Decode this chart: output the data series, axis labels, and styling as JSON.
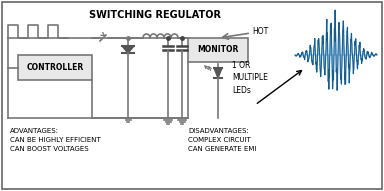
{
  "title": "SWITCHING REGULATOR",
  "bg_color": "#ffffff",
  "border_color": "#666666",
  "circuit_color": "#777777",
  "box_color": "#e8e8e8",
  "wave_color_dark": "#1a5a8a",
  "wave_color_light": "#5ab0e0",
  "adv_text": "ADVANTAGES:\nCAN BE HIGHLY EFFICIENT\nCAN BOOST VOLTAGES",
  "disadv_text": "DISADVANTAGES:\nCOMPLEX CIRCUIT\nCAN GENERATE EMI",
  "hot_text": "HOT",
  "led_text": "1 OR\nMULTIPLE\nLEDs",
  "controller_text": "CONTROLLER",
  "monitor_text": "MONITOR",
  "figw": 3.84,
  "figh": 1.91,
  "dpi": 100
}
